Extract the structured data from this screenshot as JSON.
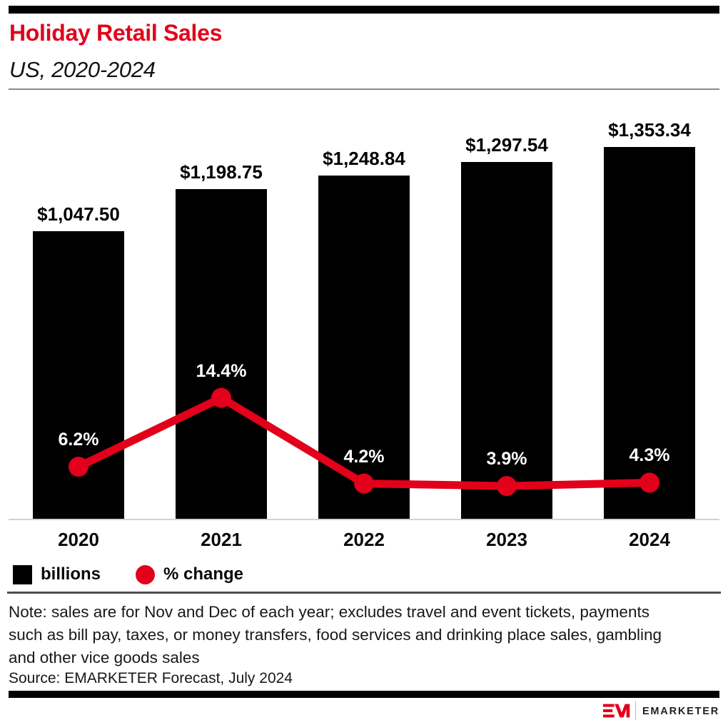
{
  "header": {
    "title": "Holiday Retail Sales",
    "subtitle": "US, 2020-2024"
  },
  "chart_data": {
    "type": "bar",
    "title": "Holiday Retail Sales",
    "subtitle": "US, 2020-2024",
    "categories": [
      "2020",
      "2021",
      "2022",
      "2023",
      "2024"
    ],
    "series": [
      {
        "name": "billions",
        "type": "bar",
        "values": [
          1047.5,
          1198.75,
          1248.84,
          1297.54,
          1353.34
        ],
        "labels": [
          "$1,047.50",
          "$1,198.75",
          "$1,248.84",
          "$1,297.54",
          "$1,353.34"
        ],
        "color": "#000000"
      },
      {
        "name": "% change",
        "type": "line",
        "values": [
          6.2,
          14.4,
          4.2,
          3.9,
          4.3
        ],
        "labels": [
          "6.2%",
          "14.4%",
          "4.2%",
          "3.9%",
          "4.3%"
        ],
        "color": "#e2001a"
      }
    ],
    "legend": [
      {
        "label": "billions",
        "swatch": "square",
        "color": "#000000"
      },
      {
        "label": "% change",
        "swatch": "circle",
        "color": "#e2001a"
      }
    ],
    "legend_position": "bottom-left",
    "grid": false,
    "axes": "no visible y-axis; x-axis category labels only"
  },
  "footnote": {
    "note": "Note: sales are for Nov and Dec of each year; excludes travel and event tickets, payments such as bill pay, taxes, or money transfers, food services and drinking place sales, gambling and other vice goods sales",
    "source": "Source: EMARKETER Forecast, July 2024"
  },
  "footer": {
    "logo_monogram": "EM",
    "logo_text": "EMARKETER"
  },
  "colors": {
    "accent_red": "#e2001a",
    "bar_black": "#000000",
    "axis_line": "#ccd3e2",
    "top_divider_gray": "#8a8a8a",
    "bottom_divider_gray": "#4d4d4d",
    "label_white": "#ffffff"
  }
}
